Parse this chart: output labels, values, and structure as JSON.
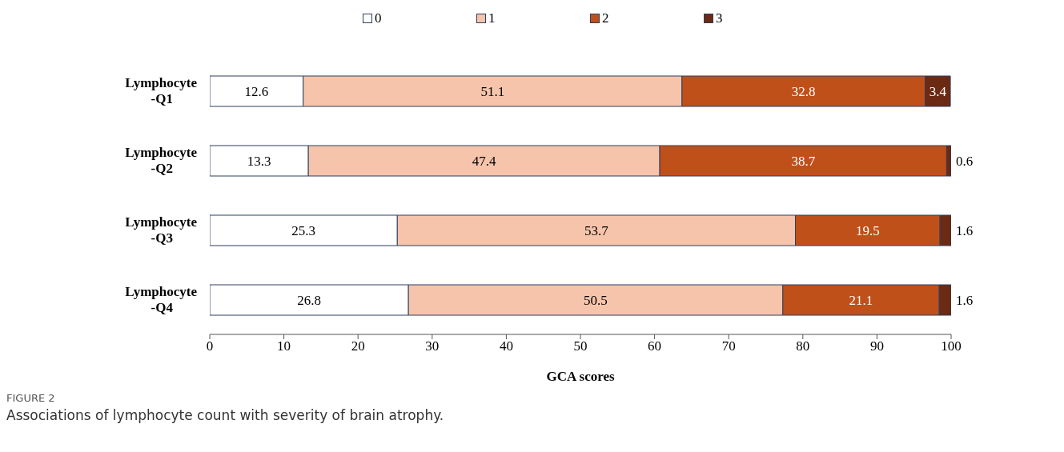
{
  "chart_data": {
    "type": "bar",
    "orientation": "horizontal",
    "stacked": true,
    "categories": [
      "Lymphocyte -Q1",
      "Lymphocyte -Q2",
      "Lymphocyte -Q3",
      "Lymphocyte -Q4"
    ],
    "series": [
      {
        "name": "0",
        "color": "#ffffff",
        "values": [
          12.6,
          13.3,
          25.3,
          26.8
        ]
      },
      {
        "name": "1",
        "color": "#f5c4ab",
        "values": [
          51.1,
          47.4,
          53.7,
          50.5
        ]
      },
      {
        "name": "2",
        "color": "#c0501a",
        "values": [
          32.8,
          38.7,
          19.5,
          21.1
        ]
      },
      {
        "name": "3",
        "color": "#6b2a14",
        "values": [
          3.4,
          0.6,
          1.6,
          1.6
        ]
      }
    ],
    "xlim": [
      0,
      100
    ],
    "xticks": [
      0,
      10,
      20,
      30,
      40,
      50,
      60,
      70,
      80,
      90,
      100
    ],
    "xlabel": "GCA scores",
    "legend": "top",
    "data_labels": true,
    "annotations": [
      "FIGURE 2",
      "Associations of lymphocyte count with severity of brain atrophy."
    ]
  }
}
